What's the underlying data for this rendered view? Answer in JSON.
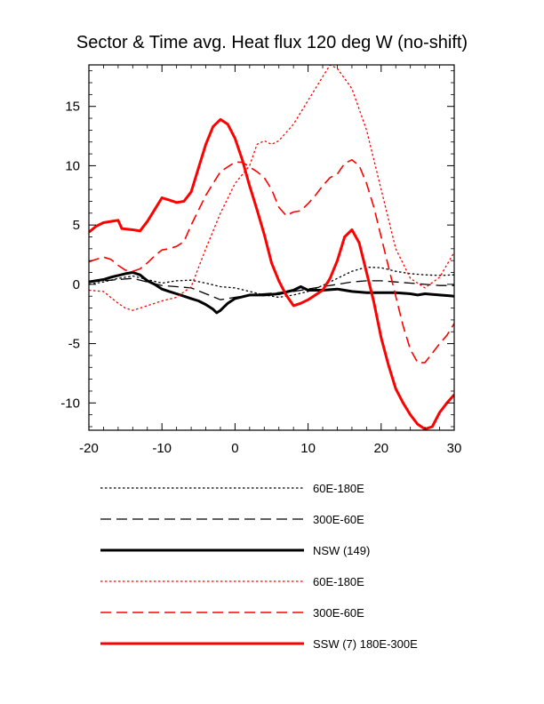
{
  "chart_data": {
    "type": "line",
    "title": "Sector & Time avg. Heat flux 120 deg W (no-shift)",
    "xlabel": "",
    "ylabel": "",
    "xlim": [
      -20,
      30
    ],
    "ylim": [
      -12.3,
      18.5
    ],
    "xticks": [
      -20,
      -10,
      0,
      10,
      20,
      30
    ],
    "yticks": [
      -10,
      -5,
      0,
      5,
      10,
      15
    ],
    "grid": false,
    "legend_position": "below",
    "series": [
      {
        "name": "60E-180E",
        "color": "#000000",
        "style": "dotted",
        "width": 1.3,
        "points": [
          [
            -20,
            0.0
          ],
          [
            -18,
            0.2
          ],
          [
            -16,
            0.5
          ],
          [
            -14,
            0.7
          ],
          [
            -12,
            0.4
          ],
          [
            -10,
            0.1
          ],
          [
            -8,
            0.3
          ],
          [
            -6,
            0.35
          ],
          [
            -4,
            0.1
          ],
          [
            -2,
            -0.2
          ],
          [
            0,
            -0.3
          ],
          [
            2,
            -0.6
          ],
          [
            4,
            -0.9
          ],
          [
            6,
            -1.1
          ],
          [
            8,
            -0.9
          ],
          [
            10,
            -0.6
          ],
          [
            12,
            -0.1
          ],
          [
            14,
            0.5
          ],
          [
            16,
            1.1
          ],
          [
            18,
            1.45
          ],
          [
            20,
            1.4
          ],
          [
            22,
            1.1
          ],
          [
            24,
            0.9
          ],
          [
            26,
            0.8
          ],
          [
            28,
            0.75
          ],
          [
            30,
            0.8
          ]
        ]
      },
      {
        "name": "300E-60E",
        "color": "#000000",
        "style": "dashed",
        "width": 1.3,
        "points": [
          [
            -20,
            0.2
          ],
          [
            -18,
            0.3
          ],
          [
            -16,
            0.4
          ],
          [
            -14,
            0.5
          ],
          [
            -12,
            0.2
          ],
          [
            -10,
            -0.1
          ],
          [
            -8,
            -0.2
          ],
          [
            -6,
            -0.3
          ],
          [
            -4,
            -0.8
          ],
          [
            -2,
            -1.3
          ],
          [
            0,
            -1.1
          ],
          [
            2,
            -0.9
          ],
          [
            4,
            -0.8
          ],
          [
            6,
            -0.7
          ],
          [
            8,
            -0.6
          ],
          [
            10,
            -0.4
          ],
          [
            12,
            -0.2
          ],
          [
            14,
            0.0
          ],
          [
            16,
            0.2
          ],
          [
            18,
            0.3
          ],
          [
            20,
            0.3
          ],
          [
            22,
            0.2
          ],
          [
            24,
            0.1
          ],
          [
            26,
            0.0
          ],
          [
            28,
            -0.1
          ],
          [
            30,
            -0.1
          ]
        ]
      },
      {
        "name": "NSW (149)",
        "color": "#000000",
        "style": "solid",
        "width": 3,
        "points": [
          [
            -20,
            0.2
          ],
          [
            -18,
            0.4
          ],
          [
            -17,
            0.6
          ],
          [
            -16,
            0.75
          ],
          [
            -15,
            0.9
          ],
          [
            -14,
            1.0
          ],
          [
            -13,
            0.8
          ],
          [
            -12,
            0.3
          ],
          [
            -11,
            0.0
          ],
          [
            -10,
            -0.4
          ],
          [
            -9,
            -0.6
          ],
          [
            -8,
            -0.8
          ],
          [
            -7,
            -1.0
          ],
          [
            -6,
            -1.2
          ],
          [
            -5,
            -1.4
          ],
          [
            -4,
            -1.7
          ],
          [
            -3,
            -2.1
          ],
          [
            -2.5,
            -2.4
          ],
          [
            -2,
            -2.2
          ],
          [
            -1.5,
            -1.9
          ],
          [
            -1,
            -1.6
          ],
          [
            0,
            -1.2
          ],
          [
            2,
            -0.9
          ],
          [
            4,
            -0.9
          ],
          [
            6,
            -0.8
          ],
          [
            8,
            -0.5
          ],
          [
            9,
            -0.2
          ],
          [
            10,
            -0.5
          ],
          [
            12,
            -0.5
          ],
          [
            14,
            -0.4
          ],
          [
            16,
            -0.6
          ],
          [
            18,
            -0.7
          ],
          [
            20,
            -0.7
          ],
          [
            22,
            -0.7
          ],
          [
            24,
            -0.8
          ],
          [
            25,
            -0.9
          ],
          [
            26,
            -0.8
          ],
          [
            28,
            -0.9
          ],
          [
            30,
            -1.0
          ]
        ]
      },
      {
        "name": "60E-180E",
        "color": "#ff0000",
        "style": "dotted",
        "width": 1.3,
        "points": [
          [
            -20,
            -0.5
          ],
          [
            -18,
            -0.6
          ],
          [
            -16,
            -1.6
          ],
          [
            -15,
            -2.0
          ],
          [
            -14,
            -2.2
          ],
          [
            -13,
            -2.0
          ],
          [
            -12,
            -1.8
          ],
          [
            -10,
            -1.4
          ],
          [
            -8,
            -1.1
          ],
          [
            -6,
            -0.2
          ],
          [
            -4,
            3.0
          ],
          [
            -2,
            6.0
          ],
          [
            0,
            8.5
          ],
          [
            2,
            10.0
          ],
          [
            3,
            11.8
          ],
          [
            4,
            12.1
          ],
          [
            5,
            11.8
          ],
          [
            6,
            12.1
          ],
          [
            8,
            13.5
          ],
          [
            10,
            15.5
          ],
          [
            12,
            17.5
          ],
          [
            13,
            18.5
          ],
          [
            14,
            18.2
          ],
          [
            16,
            16.5
          ],
          [
            18,
            13.0
          ],
          [
            20,
            8.0
          ],
          [
            22,
            3.0
          ],
          [
            24,
            0.5
          ],
          [
            26,
            -0.3
          ],
          [
            28,
            0.6
          ],
          [
            30,
            2.7
          ]
        ]
      },
      {
        "name": "300E-60E",
        "color": "#ff0000",
        "style": "dashed",
        "width": 1.6,
        "points": [
          [
            -20,
            1.9
          ],
          [
            -19,
            2.1
          ],
          [
            -18,
            2.3
          ],
          [
            -17,
            2.1
          ],
          [
            -16,
            1.6
          ],
          [
            -15,
            1.2
          ],
          [
            -14,
            1.1
          ],
          [
            -13,
            1.3
          ],
          [
            -12,
            1.8
          ],
          [
            -11,
            2.4
          ],
          [
            -10,
            2.9
          ],
          [
            -9,
            3.0
          ],
          [
            -8,
            3.2
          ],
          [
            -7,
            3.6
          ],
          [
            -6,
            5.0
          ],
          [
            -4,
            7.5
          ],
          [
            -2,
            9.5
          ],
          [
            0,
            10.3
          ],
          [
            1,
            10.3
          ],
          [
            2,
            9.9
          ],
          [
            3,
            9.5
          ],
          [
            4,
            9.0
          ],
          [
            5,
            8.0
          ],
          [
            6,
            6.5
          ],
          [
            7,
            5.8
          ],
          [
            8,
            6.1
          ],
          [
            9,
            6.2
          ],
          [
            10,
            6.8
          ],
          [
            11,
            7.5
          ],
          [
            12,
            8.3
          ],
          [
            13,
            9.0
          ],
          [
            14,
            9.3
          ],
          [
            15,
            10.2
          ],
          [
            16,
            10.5
          ],
          [
            17,
            10.0
          ],
          [
            18,
            8.5
          ],
          [
            19,
            6.5
          ],
          [
            20,
            4.0
          ],
          [
            21,
            1.5
          ],
          [
            22,
            -1.0
          ],
          [
            23,
            -3.5
          ],
          [
            24,
            -5.5
          ],
          [
            25,
            -6.6
          ],
          [
            26,
            -6.6
          ],
          [
            27,
            -5.8
          ],
          [
            28,
            -5.0
          ],
          [
            29,
            -4.3
          ],
          [
            30,
            -3.3
          ]
        ]
      },
      {
        "name": "SSW (7) 180E-300E",
        "color": "#ff0000",
        "style": "solid",
        "width": 3,
        "points": [
          [
            -20,
            4.4
          ],
          [
            -19,
            4.9
          ],
          [
            -18,
            5.2
          ],
          [
            -17,
            5.3
          ],
          [
            -16,
            5.4
          ],
          [
            -15.5,
            4.7
          ],
          [
            -14,
            4.6
          ],
          [
            -13,
            4.5
          ],
          [
            -12,
            5.3
          ],
          [
            -11,
            6.3
          ],
          [
            -10,
            7.3
          ],
          [
            -9,
            7.1
          ],
          [
            -8,
            6.9
          ],
          [
            -7,
            7.0
          ],
          [
            -6,
            7.8
          ],
          [
            -5,
            9.8
          ],
          [
            -4,
            11.8
          ],
          [
            -3,
            13.3
          ],
          [
            -2,
            13.9
          ],
          [
            -1,
            13.5
          ],
          [
            0,
            12.3
          ],
          [
            1,
            10.5
          ],
          [
            2,
            8.3
          ],
          [
            3,
            6.3
          ],
          [
            4,
            4.2
          ],
          [
            5,
            1.8
          ],
          [
            6,
            0.3
          ],
          [
            7,
            -0.9
          ],
          [
            8,
            -1.8
          ],
          [
            9,
            -1.6
          ],
          [
            10,
            -1.3
          ],
          [
            11,
            -0.9
          ],
          [
            12,
            -0.5
          ],
          [
            13,
            0.5
          ],
          [
            14,
            2.0
          ],
          [
            15,
            4.0
          ],
          [
            16,
            4.6
          ],
          [
            17,
            3.5
          ],
          [
            18,
            1.0
          ],
          [
            19,
            -1.5
          ],
          [
            20,
            -4.5
          ],
          [
            21,
            -6.8
          ],
          [
            22,
            -8.8
          ],
          [
            23,
            -10.0
          ],
          [
            24,
            -11.0
          ],
          [
            25,
            -11.8
          ],
          [
            26,
            -12.2
          ],
          [
            27,
            -12.0
          ],
          [
            28,
            -10.8
          ],
          [
            29,
            -10.0
          ],
          [
            30,
            -9.3
          ]
        ]
      }
    ]
  }
}
